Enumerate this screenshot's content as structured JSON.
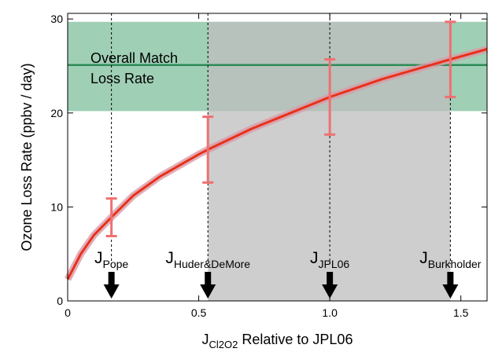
{
  "chart_data": {
    "type": "line",
    "ylabel": "Ozone Loss Rate (ppbv / day)",
    "xlabel": {
      "main": "J",
      "sub": "Cl2O2",
      "rest": " Relative to JPL06"
    },
    "x": [
      0,
      0.05,
      0.1,
      0.167,
      0.25,
      0.35,
      0.5,
      0.535,
      0.7,
      0.85,
      1.0,
      1.2,
      1.46,
      1.6
    ],
    "values": [
      2.3,
      5,
      7,
      8.9,
      11.2,
      13.2,
      15.6,
      16.1,
      18.3,
      20,
      21.7,
      23.6,
      25.7,
      26.8
    ],
    "color": "#e8311a",
    "errorbars": {
      "color": "#f07070",
      "points": [
        {
          "x": 0.167,
          "value": 8.9,
          "error": 2
        },
        {
          "x": 0.535,
          "value": 16.1,
          "error": 3.5
        },
        {
          "x": 1.0,
          "value": 21.7,
          "error": 4
        },
        {
          "x": 1.46,
          "value": 25.7,
          "error": 4
        }
      ]
    },
    "match_band": {
      "low": 20.2,
      "high": 29.7,
      "line": 25.1,
      "color": "#9fcfb5",
      "line_color": "#2e8b57",
      "label": [
        "Overall Match",
        "Loss Rate"
      ]
    },
    "range_region": {
      "x0": 0.535,
      "x1": 1.46,
      "color": "#bdbdbd"
    },
    "markers": [
      {
        "x": 0.167,
        "label": "J",
        "sub": "Pope"
      },
      {
        "x": 0.535,
        "label": "J",
        "sub": "Huder&DeMore"
      },
      {
        "x": 1.0,
        "label": "J",
        "sub": "JPL06"
      },
      {
        "x": 1.46,
        "label": "J",
        "sub": "Burkholder"
      }
    ],
    "xlim": [
      0,
      1.6
    ],
    "ylim": [
      0,
      30.6
    ],
    "xticks": [
      0,
      0.5,
      {
        "value": 1,
        "label": "1.0"
      },
      1.5
    ],
    "yticks": [
      0,
      10,
      20,
      30
    ]
  }
}
